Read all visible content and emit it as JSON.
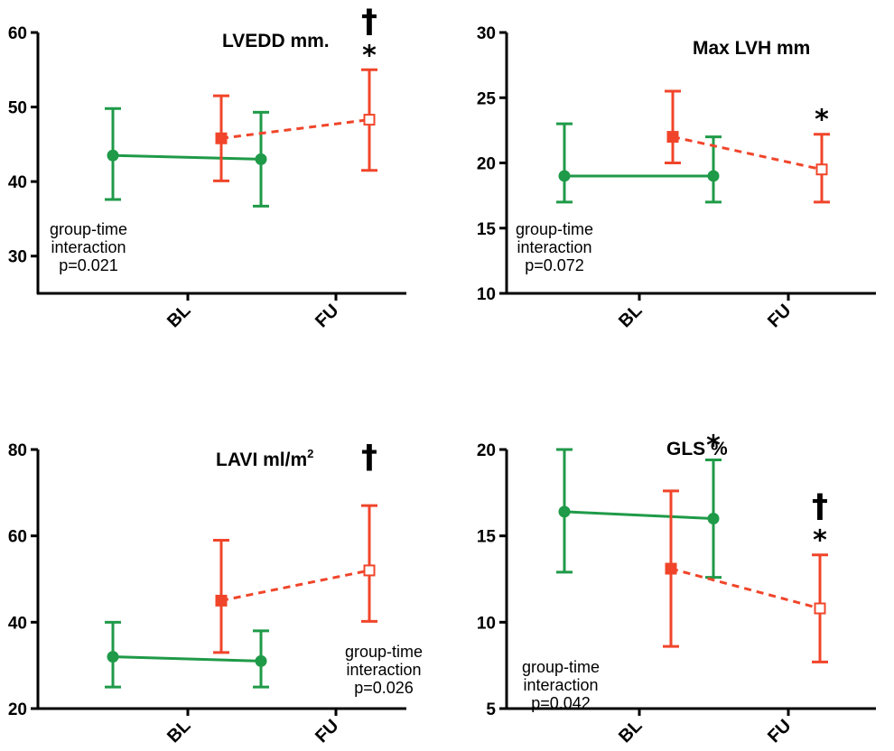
{
  "colors": {
    "green": "#1f9a48",
    "red": "#f0452a",
    "axis": "#000000"
  },
  "chart_data": [
    {
      "type": "line",
      "title": "LVEDD mm.",
      "title_sup": "",
      "categories": [
        "BL",
        "FU"
      ],
      "ylim": [
        25,
        60
      ],
      "yticks": [
        30,
        40,
        50,
        60
      ],
      "series": [
        {
          "color": "green",
          "style": "solid",
          "marker": "circle",
          "offset": "left",
          "values": [
            43.5,
            43.0
          ],
          "lower": [
            37.6,
            36.7
          ],
          "upper": [
            49.8,
            49.3
          ]
        },
        {
          "color": "red",
          "style": "dashed",
          "marker": "square",
          "offset": "right",
          "values": [
            45.8,
            48.3
          ],
          "lower": [
            40.1,
            41.5
          ],
          "upper": [
            51.5,
            55.0
          ]
        }
      ],
      "note": [
        "group-time",
        "interaction",
        "p=0.021"
      ],
      "note_position": "bottom-left",
      "markers": [
        {
          "text": "*",
          "series": 1,
          "index": 1,
          "level": 1
        },
        {
          "text": "†",
          "series": 1,
          "index": 1,
          "level": 2
        }
      ]
    },
    {
      "type": "line",
      "title": "Max LVH mm",
      "title_sup": "",
      "categories": [
        "BL",
        "FU"
      ],
      "ylim": [
        10,
        30
      ],
      "yticks": [
        10,
        15,
        20,
        25,
        30
      ],
      "series": [
        {
          "color": "green",
          "style": "solid",
          "marker": "circle",
          "offset": "left",
          "values": [
            19.0,
            19.0
          ],
          "lower": [
            17.0,
            17.0
          ],
          "upper": [
            23.0,
            22.0
          ]
        },
        {
          "color": "red",
          "style": "dashed",
          "marker": "square",
          "offset": "right",
          "values": [
            22.0,
            19.5
          ],
          "lower": [
            20.0,
            17.0
          ],
          "upper": [
            25.5,
            22.2
          ]
        }
      ],
      "note": [
        "group-time",
        "interaction",
        "p=0.072"
      ],
      "note_position": "bottom-left",
      "markers": [
        {
          "text": "*",
          "series": 1,
          "index": 1,
          "level": 1
        }
      ]
    },
    {
      "type": "line",
      "title": "LAVI ml/m",
      "title_sup": "2",
      "categories": [
        "BL",
        "FU"
      ],
      "ylim": [
        20,
        80
      ],
      "yticks": [
        20,
        40,
        60,
        80
      ],
      "series": [
        {
          "color": "green",
          "style": "solid",
          "marker": "circle",
          "offset": "left",
          "values": [
            32.0,
            31.0
          ],
          "lower": [
            25.0,
            25.0
          ],
          "upper": [
            40.0,
            38.0
          ]
        },
        {
          "color": "red",
          "style": "dashed",
          "marker": "square",
          "offset": "right",
          "values": [
            45.0,
            52.0
          ],
          "lower": [
            33.0,
            40.2
          ],
          "upper": [
            59.0,
            67.0
          ]
        }
      ],
      "note": [
        "group-time",
        "interaction",
        "p=0.026"
      ],
      "note_position": "bottom-right",
      "markers": [
        {
          "text": "†",
          "series": 1,
          "index": 1,
          "level": 2
        }
      ]
    },
    {
      "type": "line",
      "title": "GLS %",
      "title_sup": "",
      "categories": [
        "BL",
        "FU"
      ],
      "ylim": [
        5,
        20
      ],
      "yticks": [
        5,
        10,
        15,
        20
      ],
      "series": [
        {
          "color": "green",
          "style": "solid",
          "marker": "circle",
          "offset": "left",
          "values": [
            16.4,
            16.0
          ],
          "lower": [
            12.9,
            12.6
          ],
          "upper": [
            20.0,
            19.4
          ]
        },
        {
          "color": "red",
          "style": "dashed",
          "marker": "square",
          "offset": "right",
          "values": [
            13.1,
            10.8
          ],
          "lower": [
            8.6,
            7.7
          ],
          "upper": [
            17.6,
            13.9
          ]
        }
      ],
      "note": [
        "group-time",
        "interaction",
        "p=0.042"
      ],
      "note_position": "bottom-left",
      "markers": [
        {
          "text": "*",
          "series": 0,
          "index": 1,
          "level": 1
        },
        {
          "text": "*",
          "series": 1,
          "index": 1,
          "level": 1
        },
        {
          "text": "†",
          "series": 1,
          "index": 1,
          "level": 2
        }
      ]
    }
  ]
}
